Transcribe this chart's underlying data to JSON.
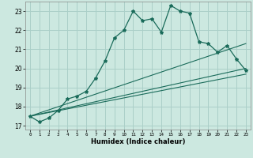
{
  "title": "",
  "xlabel": "Humidex (Indice chaleur)",
  "background_color": "#cce8e0",
  "grid_color": "#aacfc8",
  "line_color": "#1a6b5a",
  "xlim": [
    -0.5,
    23.5
  ],
  "ylim": [
    16.8,
    23.5
  ],
  "yticks": [
    17,
    18,
    19,
    20,
    21,
    22,
    23
  ],
  "xticks": [
    0,
    1,
    2,
    3,
    4,
    5,
    6,
    7,
    8,
    9,
    10,
    11,
    12,
    13,
    14,
    15,
    16,
    17,
    18,
    19,
    20,
    21,
    22,
    23
  ],
  "series1_x": [
    0,
    1,
    2,
    3,
    4,
    5,
    6,
    7,
    8,
    9,
    10,
    11,
    12,
    13,
    14,
    15,
    16,
    17,
    18,
    19,
    20,
    21,
    22,
    23
  ],
  "series1_y": [
    17.5,
    17.2,
    17.4,
    17.8,
    18.4,
    18.55,
    18.8,
    19.5,
    20.4,
    21.6,
    22.0,
    23.0,
    22.5,
    22.6,
    21.9,
    23.3,
    23.0,
    22.9,
    21.4,
    21.3,
    20.85,
    21.2,
    20.5,
    19.9
  ],
  "series2_x": [
    0,
    23
  ],
  "series2_y": [
    17.5,
    21.3
  ],
  "series3_x": [
    0,
    23
  ],
  "series3_y": [
    17.5,
    20.0
  ],
  "series4_x": [
    0,
    23
  ],
  "series4_y": [
    17.5,
    19.7
  ]
}
